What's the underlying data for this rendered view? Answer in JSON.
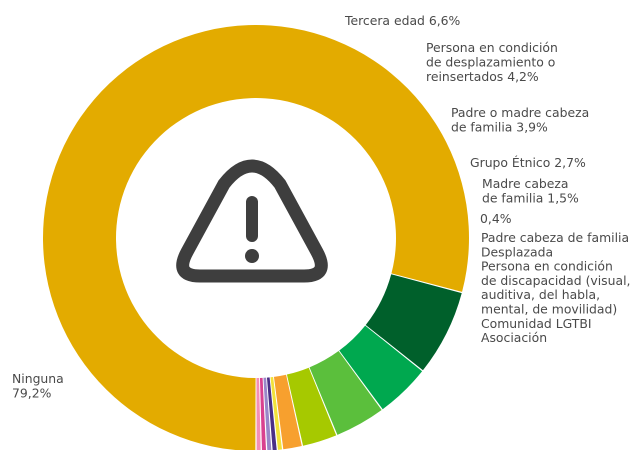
{
  "chart_data": {
    "type": "pie",
    "title": "",
    "center_icon": "warning-triangle-icon",
    "slices": [
      {
        "label": "Ninguna",
        "value_text": "79,2%",
        "value": 79.2,
        "color": "#e3ab00"
      },
      {
        "label": "Tercera edad",
        "value_text": "6,6%",
        "value": 6.6,
        "color": "#00602b"
      },
      {
        "label": "Persona en condición de desplazamiento o reinsertados",
        "value_text": "4,2%",
        "value": 4.2,
        "color": "#00a84f"
      },
      {
        "label": "Padre o madre cabeza de familia",
        "value_text": "3,9%",
        "value": 3.9,
        "color": "#5bbf3c"
      },
      {
        "label": "Grupo Étnico",
        "value_text": "2,7%",
        "value": 2.7,
        "color": "#a6c900"
      },
      {
        "label": "Madre cabeza de familia",
        "value_text": "1,5%",
        "value": 1.5,
        "color": "#f7a02e"
      },
      {
        "label": "Padre cabeza de familia",
        "value_text": "0,4%",
        "value": 0.4,
        "color": "#f2e23a"
      },
      {
        "label": "Desplazada",
        "value_text": "0,4%",
        "value": 0.4,
        "color": "#4a2f86"
      },
      {
        "label": "Persona en condición de discapacidad (visual, auditiva, del habla, mental, de movilidad)",
        "value_text": "0,4%",
        "value": 0.4,
        "color": "#9a86c8"
      },
      {
        "label": "Comunidad LGTBI",
        "value_text": "0,4%",
        "value": 0.4,
        "color": "#d9418f"
      },
      {
        "label": "Asociación",
        "value_text": "0,4%",
        "value": 0.4,
        "color": "#f38fb6"
      }
    ],
    "labels": {
      "ninguna": [
        "Ninguna",
        "79,2%"
      ],
      "tercera": [
        "Tercera edad 6,6%"
      ],
      "desplazamiento": [
        "Persona en condición",
        "de desplazamiento o",
        "reinsertados 4,2%"
      ],
      "padre_madre": [
        "Padre o madre cabeza",
        "de familia 3,9%"
      ],
      "grupo": [
        "Grupo Étnico 2,7%"
      ],
      "madre": [
        "Madre cabeza",
        "de familia 1,5%"
      ],
      "small_value": [
        "0,4%"
      ],
      "small_group": [
        "Padre cabeza de familia",
        "Desplazada",
        "Persona en condición",
        "de discapacidad (visual,",
        "auditiva, del habla,",
        "mental, de movilidad)",
        "Comunidad LGTBI",
        "Asociación"
      ]
    }
  }
}
